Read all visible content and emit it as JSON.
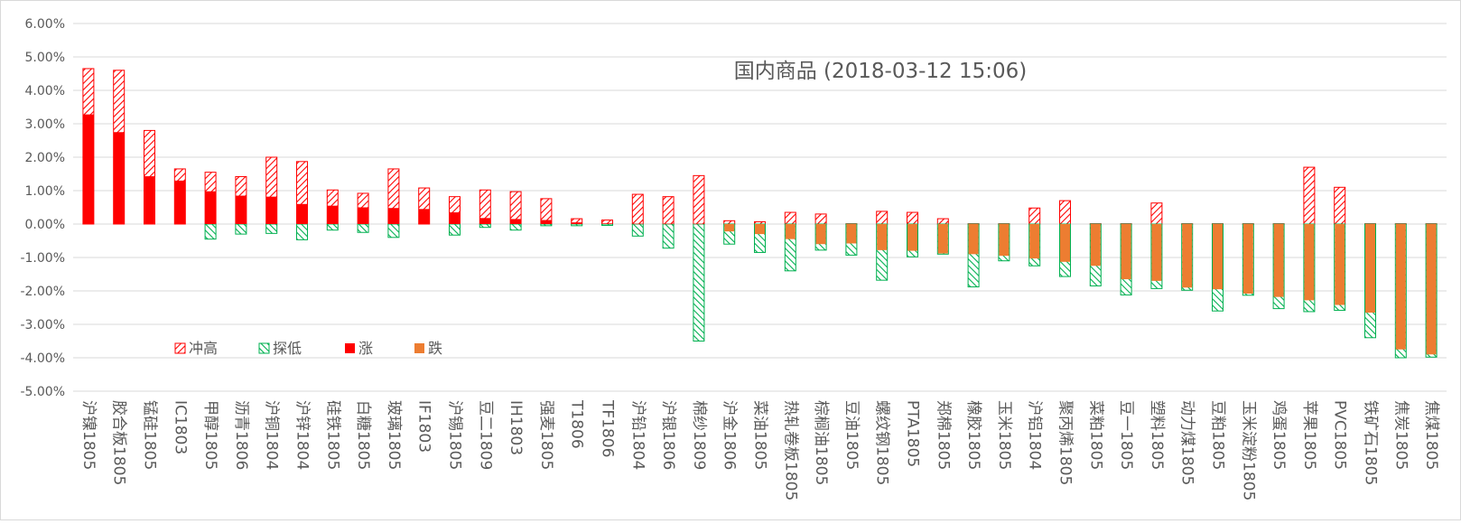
{
  "chart_data": {
    "type": "bar",
    "title": "国内商品 (2018-03-12 15:06)",
    "ylim": [
      -0.05,
      0.06
    ],
    "y_ticks": [
      "6.00%",
      "5.00%",
      "4.00%",
      "3.00%",
      "2.00%",
      "1.00%",
      "0.00%",
      "-1.00%",
      "-2.00%",
      "-3.00%",
      "-4.00%",
      "-5.00%"
    ],
    "grid": true,
    "legend_position": "lower-left inside plot",
    "legend": [
      {
        "key": "high",
        "label": "冲高"
      },
      {
        "key": "low",
        "label": "探低"
      },
      {
        "key": "up",
        "label": "涨"
      },
      {
        "key": "down",
        "label": "跌"
      }
    ],
    "colors": {
      "up": "#ff0000",
      "down": "#ed7d31",
      "high_hatch": "#ff0000",
      "low_hatch": "#00b050",
      "grid": "#d9d9d9",
      "text": "#595959"
    },
    "categories": [
      "沪镍1805",
      "胶合板1805",
      "锰硅1805",
      "IC1803",
      "甲醇1805",
      "沥青1806",
      "沪铜1804",
      "沪锌1804",
      "硅铁1805",
      "白糖1805",
      "玻璃1805",
      "IF1803",
      "沪锡1805",
      "豆二1809",
      "IH1803",
      "强麦1805",
      "T1806",
      "TF1806",
      "沪铅1804",
      "沪银1806",
      "棉纱1809",
      "沪金1806",
      "菜油1805",
      "热轧卷板1805",
      "棕榈油1805",
      "豆油1805",
      "螺纹钢1805",
      "PTA1805",
      "郑棉1805",
      "橡胶1805",
      "玉米1805",
      "沪铝1804",
      "聚丙烯1805",
      "菜粕1805",
      "豆一1805",
      "塑料1805",
      "动力煤1805",
      "豆粕1805",
      "玉米淀粉1805",
      "鸡蛋1805",
      "苹果1805",
      "PVC1805",
      "铁矿石1805",
      "焦炭1805",
      "焦煤1805"
    ],
    "series": [
      {
        "name": "冲高",
        "values": [
          0.0465,
          0.046,
          0.028,
          0.0165,
          0.0155,
          0.0142,
          0.02,
          0.0187,
          0.0102,
          0.0092,
          0.0165,
          0.0108,
          0.0082,
          0.0102,
          0.0097,
          0.0076,
          0.0016,
          0.0012,
          0.0089,
          0.0082,
          0.0145,
          0.001,
          0.0007,
          0.0035,
          0.003,
          0.0001,
          0.0038,
          0.0035,
          0.0016,
          0.0001,
          0.0001,
          0.0048,
          0.007,
          0.0001,
          0.0001,
          0.0063,
          0.0001,
          0.0001,
          0.0001,
          0.0001,
          0.017,
          0.011,
          0.0001,
          0.0001,
          0.0001
        ]
      },
      {
        "name": "探低",
        "values": [
          0.0,
          0.0,
          0.0,
          0.0,
          -0.0045,
          -0.003,
          -0.0028,
          -0.0047,
          -0.0018,
          -0.0025,
          -0.004,
          0.0,
          -0.0033,
          -0.001,
          -0.0018,
          -0.0005,
          -0.0005,
          -0.0004,
          -0.0036,
          -0.0072,
          -0.035,
          -0.006,
          -0.0085,
          -0.014,
          -0.0078,
          -0.0093,
          -0.0168,
          -0.0098,
          -0.009,
          -0.0188,
          -0.011,
          -0.0125,
          -0.0157,
          -0.0185,
          -0.0212,
          -0.0193,
          -0.0198,
          -0.026,
          -0.0213,
          -0.0253,
          -0.0262,
          -0.0258,
          -0.034,
          -0.04,
          -0.0398
        ]
      },
      {
        "name": "涨",
        "values": [
          0.0328,
          0.0275,
          0.0143,
          0.013,
          0.0098,
          0.0085,
          0.0082,
          0.006,
          0.0055,
          0.005,
          0.0048,
          0.0045,
          0.0035,
          0.0018,
          0.0015,
          0.0012,
          0.0005,
          0.0002,
          0.0001,
          0.0001,
          0.0001,
          0.0,
          0.0,
          0.0,
          0.0,
          0.0,
          0.0,
          0.0,
          0.0,
          0.0,
          0.0,
          0.0,
          0.0,
          0.0,
          0.0,
          0.0,
          0.0,
          0.0,
          0.0,
          0.0,
          0.0,
          0.0,
          0.0,
          0.0,
          0.0
        ]
      },
      {
        "name": "跌",
        "values": [
          0.0,
          0.0,
          0.0,
          0.0,
          0.0,
          0.0,
          0.0,
          0.0,
          0.0,
          0.0,
          0.0,
          0.0,
          0.0,
          0.0,
          0.0,
          0.0,
          0.0,
          0.0,
          0.0,
          0.0,
          0.0,
          -0.0022,
          -0.003,
          -0.0045,
          -0.006,
          -0.0058,
          -0.0078,
          -0.008,
          -0.0088,
          -0.009,
          -0.0095,
          -0.0103,
          -0.0113,
          -0.0125,
          -0.0165,
          -0.017,
          -0.019,
          -0.0195,
          -0.0208,
          -0.0218,
          -0.0228,
          -0.0242,
          -0.0265,
          -0.0375,
          -0.039
        ]
      }
    ]
  }
}
